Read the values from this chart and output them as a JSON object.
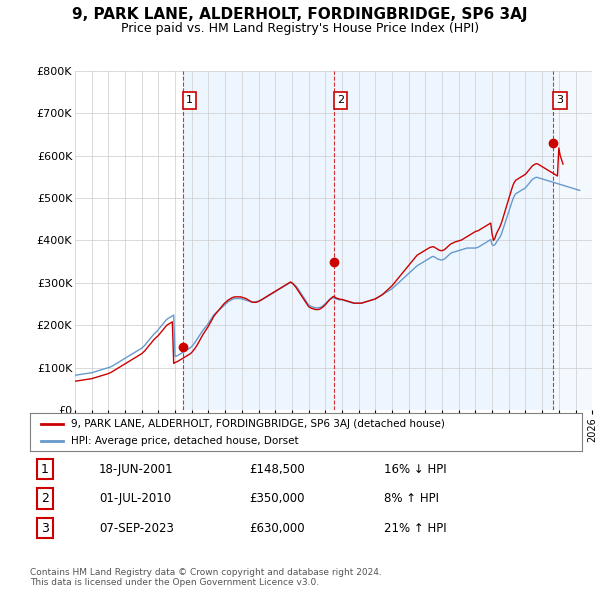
{
  "title": "9, PARK LANE, ALDERHOLT, FORDINGBRIDGE, SP6 3AJ",
  "subtitle": "Price paid vs. HM Land Registry's House Price Index (HPI)",
  "ylabel_ticks": [
    "£0",
    "£100K",
    "£200K",
    "£300K",
    "£400K",
    "£500K",
    "£600K",
    "£700K",
    "£800K"
  ],
  "ylim": [
    0,
    800000
  ],
  "xlim_start": 1995.0,
  "xlim_end": 2026.0,
  "red_line_color": "#cc0000",
  "blue_line_color": "#6699cc",
  "shade_color": "#ddeeff",
  "legend_label_red": "9, PARK LANE, ALDERHOLT, FORDINGBRIDGE, SP6 3AJ (detached house)",
  "legend_label_blue": "HPI: Average price, detached house, Dorset",
  "transactions": [
    {
      "num": 1,
      "date": "18-JUN-2001",
      "price": 148500,
      "change": "16% ↓ HPI",
      "year": 2001.46
    },
    {
      "num": 2,
      "date": "01-JUL-2010",
      "price": 350000,
      "change": "8% ↑ HPI",
      "year": 2010.5
    },
    {
      "num": 3,
      "date": "07-SEP-2023",
      "price": 630000,
      "change": "21% ↑ HPI",
      "year": 2023.67
    }
  ],
  "footer": "Contains HM Land Registry data © Crown copyright and database right 2024.\nThis data is licensed under the Open Government Licence v3.0.",
  "hpi_x": [
    1995.0,
    1995.083,
    1995.167,
    1995.25,
    1995.333,
    1995.417,
    1995.5,
    1995.583,
    1995.667,
    1995.75,
    1995.833,
    1995.917,
    1996.0,
    1996.083,
    1996.167,
    1996.25,
    1996.333,
    1996.417,
    1996.5,
    1996.583,
    1996.667,
    1996.75,
    1996.833,
    1996.917,
    1997.0,
    1997.083,
    1997.167,
    1997.25,
    1997.333,
    1997.417,
    1997.5,
    1997.583,
    1997.667,
    1997.75,
    1997.833,
    1997.917,
    1998.0,
    1998.083,
    1998.167,
    1998.25,
    1998.333,
    1998.417,
    1998.5,
    1998.583,
    1998.667,
    1998.75,
    1998.833,
    1998.917,
    1999.0,
    1999.083,
    1999.167,
    1999.25,
    1999.333,
    1999.417,
    1999.5,
    1999.583,
    1999.667,
    1999.75,
    1999.833,
    1999.917,
    2000.0,
    2000.083,
    2000.167,
    2000.25,
    2000.333,
    2000.417,
    2000.5,
    2000.583,
    2000.667,
    2000.75,
    2000.833,
    2000.917,
    2001.0,
    2001.083,
    2001.167,
    2001.25,
    2001.333,
    2001.417,
    2001.5,
    2001.583,
    2001.667,
    2001.75,
    2001.833,
    2001.917,
    2002.0,
    2002.083,
    2002.167,
    2002.25,
    2002.333,
    2002.417,
    2002.5,
    2002.583,
    2002.667,
    2002.75,
    2002.833,
    2002.917,
    2003.0,
    2003.083,
    2003.167,
    2003.25,
    2003.333,
    2003.417,
    2003.5,
    2003.583,
    2003.667,
    2003.75,
    2003.833,
    2003.917,
    2004.0,
    2004.083,
    2004.167,
    2004.25,
    2004.333,
    2004.417,
    2004.5,
    2004.583,
    2004.667,
    2004.75,
    2004.833,
    2004.917,
    2005.0,
    2005.083,
    2005.167,
    2005.25,
    2005.333,
    2005.417,
    2005.5,
    2005.583,
    2005.667,
    2005.75,
    2005.833,
    2005.917,
    2006.0,
    2006.083,
    2006.167,
    2006.25,
    2006.333,
    2006.417,
    2006.5,
    2006.583,
    2006.667,
    2006.75,
    2006.833,
    2006.917,
    2007.0,
    2007.083,
    2007.167,
    2007.25,
    2007.333,
    2007.417,
    2007.5,
    2007.583,
    2007.667,
    2007.75,
    2007.833,
    2007.917,
    2008.0,
    2008.083,
    2008.167,
    2008.25,
    2008.333,
    2008.417,
    2008.5,
    2008.583,
    2008.667,
    2008.75,
    2008.833,
    2008.917,
    2009.0,
    2009.083,
    2009.167,
    2009.25,
    2009.333,
    2009.417,
    2009.5,
    2009.583,
    2009.667,
    2009.75,
    2009.833,
    2009.917,
    2010.0,
    2010.083,
    2010.167,
    2010.25,
    2010.333,
    2010.417,
    2010.5,
    2010.583,
    2010.667,
    2010.75,
    2010.833,
    2010.917,
    2011.0,
    2011.083,
    2011.167,
    2011.25,
    2011.333,
    2011.417,
    2011.5,
    2011.583,
    2011.667,
    2011.75,
    2011.833,
    2011.917,
    2012.0,
    2012.083,
    2012.167,
    2012.25,
    2012.333,
    2012.417,
    2012.5,
    2012.583,
    2012.667,
    2012.75,
    2012.833,
    2012.917,
    2013.0,
    2013.083,
    2013.167,
    2013.25,
    2013.333,
    2013.417,
    2013.5,
    2013.583,
    2013.667,
    2013.75,
    2013.833,
    2013.917,
    2014.0,
    2014.083,
    2014.167,
    2014.25,
    2014.333,
    2014.417,
    2014.5,
    2014.583,
    2014.667,
    2014.75,
    2014.833,
    2014.917,
    2015.0,
    2015.083,
    2015.167,
    2015.25,
    2015.333,
    2015.417,
    2015.5,
    2015.583,
    2015.667,
    2015.75,
    2015.833,
    2015.917,
    2016.0,
    2016.083,
    2016.167,
    2016.25,
    2016.333,
    2016.417,
    2016.5,
    2016.583,
    2016.667,
    2016.75,
    2016.833,
    2016.917,
    2017.0,
    2017.083,
    2017.167,
    2017.25,
    2017.333,
    2017.417,
    2017.5,
    2017.583,
    2017.667,
    2017.75,
    2017.833,
    2017.917,
    2018.0,
    2018.083,
    2018.167,
    2018.25,
    2018.333,
    2018.417,
    2018.5,
    2018.583,
    2018.667,
    2018.75,
    2018.833,
    2018.917,
    2019.0,
    2019.083,
    2019.167,
    2019.25,
    2019.333,
    2019.417,
    2019.5,
    2019.583,
    2019.667,
    2019.75,
    2019.833,
    2019.917,
    2020.0,
    2020.083,
    2020.167,
    2020.25,
    2020.333,
    2020.417,
    2020.5,
    2020.583,
    2020.667,
    2020.75,
    2020.833,
    2020.917,
    2021.0,
    2021.083,
    2021.167,
    2021.25,
    2021.333,
    2021.417,
    2021.5,
    2021.583,
    2021.667,
    2021.75,
    2021.833,
    2021.917,
    2022.0,
    2022.083,
    2022.167,
    2022.25,
    2022.333,
    2022.417,
    2022.5,
    2022.583,
    2022.667,
    2022.75,
    2022.833,
    2022.917,
    2023.0,
    2023.083,
    2023.167,
    2023.25,
    2023.333,
    2023.417,
    2023.5,
    2023.583,
    2023.667,
    2023.75,
    2023.833,
    2023.917,
    2024.0,
    2024.083,
    2024.167,
    2024.25,
    2024.333,
    2024.417,
    2024.5,
    2024.583,
    2024.667,
    2024.75,
    2024.833,
    2024.917,
    2025.0,
    2025.083,
    2025.167,
    2025.25
  ],
  "hpi_y": [
    82000,
    82500,
    83000,
    83500,
    84000,
    84500,
    85000,
    85500,
    86000,
    86500,
    87000,
    87500,
    88000,
    89000,
    90000,
    91000,
    92000,
    93000,
    94000,
    95000,
    96000,
    97000,
    98000,
    99000,
    100000,
    101000,
    102500,
    104000,
    106000,
    108000,
    110000,
    112000,
    114000,
    116000,
    118000,
    120000,
    122000,
    124000,
    126000,
    128000,
    130000,
    132000,
    134000,
    136000,
    138000,
    140000,
    142000,
    144000,
    146000,
    149000,
    152000,
    156000,
    160000,
    164000,
    168000,
    172000,
    176000,
    180000,
    183000,
    186000,
    190000,
    194000,
    198000,
    202000,
    206000,
    210000,
    214000,
    216000,
    218000,
    220000,
    222000,
    224000,
    126000,
    127500,
    129000,
    131000,
    133000,
    135000,
    137000,
    139000,
    141000,
    143000,
    145000,
    147000,
    150000,
    154000,
    158000,
    163000,
    168000,
    173000,
    178000,
    183000,
    188000,
    192000,
    196000,
    200000,
    205000,
    210000,
    215000,
    220000,
    225000,
    228000,
    231000,
    234000,
    237000,
    240000,
    243000,
    246000,
    249000,
    252000,
    255000,
    257000,
    259000,
    261000,
    262000,
    263000,
    263000,
    263000,
    263000,
    263000,
    262000,
    261000,
    260000,
    259000,
    258000,
    257000,
    256000,
    255000,
    255000,
    255000,
    255000,
    256000,
    257000,
    258000,
    259000,
    261000,
    263000,
    265000,
    267000,
    269000,
    271000,
    273000,
    275000,
    277000,
    279000,
    281000,
    283000,
    285000,
    287000,
    289000,
    291000,
    293000,
    295000,
    297000,
    299000,
    301000,
    300000,
    298000,
    295000,
    292000,
    288000,
    283000,
    278000,
    273000,
    268000,
    263000,
    258000,
    253000,
    248000,
    246000,
    244000,
    243000,
    242000,
    241000,
    241000,
    241000,
    242000,
    243000,
    245000,
    248000,
    251000,
    254000,
    257000,
    260000,
    262000,
    264000,
    265000,
    263000,
    262000,
    261000,
    260000,
    260000,
    260000,
    259000,
    258000,
    257000,
    256000,
    255000,
    254000,
    253000,
    252000,
    252000,
    252000,
    252000,
    252000,
    252000,
    252000,
    253000,
    254000,
    255000,
    256000,
    257000,
    258000,
    259000,
    260000,
    261000,
    262000,
    264000,
    266000,
    268000,
    270000,
    272000,
    274000,
    276000,
    278000,
    280000,
    282000,
    284000,
    286000,
    289000,
    292000,
    295000,
    298000,
    301000,
    304000,
    307000,
    310000,
    313000,
    316000,
    319000,
    322000,
    325000,
    328000,
    331000,
    334000,
    337000,
    340000,
    342000,
    344000,
    346000,
    348000,
    350000,
    352000,
    354000,
    356000,
    358000,
    360000,
    362000,
    362000,
    360000,
    358000,
    356000,
    355000,
    354000,
    354000,
    355000,
    357000,
    360000,
    363000,
    366000,
    369000,
    371000,
    372000,
    373000,
    374000,
    375000,
    376000,
    377000,
    378000,
    379000,
    380000,
    381000,
    382000,
    382000,
    382000,
    382000,
    382000,
    382000,
    382000,
    383000,
    384000,
    386000,
    388000,
    390000,
    392000,
    394000,
    396000,
    398000,
    400000,
    402000,
    390000,
    388000,
    390000,
    395000,
    400000,
    405000,
    410000,
    418000,
    428000,
    438000,
    448000,
    458000,
    468000,
    478000,
    488000,
    498000,
    505000,
    510000,
    512000,
    514000,
    516000,
    518000,
    520000,
    522000,
    524000,
    528000,
    532000,
    536000,
    540000,
    544000,
    546000,
    548000,
    549000,
    548000,
    547000,
    546000,
    545000,
    544000,
    543000,
    542000,
    541000,
    540000,
    539000,
    538000,
    537000,
    536000,
    535000,
    534000,
    533000,
    532000,
    531000,
    530000,
    529000,
    528000,
    527000,
    526000,
    525000,
    524000,
    523000,
    522000,
    521000,
    520000,
    519000,
    518000
  ],
  "red_x": [
    1995.0,
    1995.083,
    1995.167,
    1995.25,
    1995.333,
    1995.417,
    1995.5,
    1995.583,
    1995.667,
    1995.75,
    1995.833,
    1995.917,
    1996.0,
    1996.083,
    1996.167,
    1996.25,
    1996.333,
    1996.417,
    1996.5,
    1996.583,
    1996.667,
    1996.75,
    1996.833,
    1996.917,
    1997.0,
    1997.083,
    1997.167,
    1997.25,
    1997.333,
    1997.417,
    1997.5,
    1997.583,
    1997.667,
    1997.75,
    1997.833,
    1997.917,
    1998.0,
    1998.083,
    1998.167,
    1998.25,
    1998.333,
    1998.417,
    1998.5,
    1998.583,
    1998.667,
    1998.75,
    1998.833,
    1998.917,
    1999.0,
    1999.083,
    1999.167,
    1999.25,
    1999.333,
    1999.417,
    1999.5,
    1999.583,
    1999.667,
    1999.75,
    1999.833,
    1999.917,
    2000.0,
    2000.083,
    2000.167,
    2000.25,
    2000.333,
    2000.417,
    2000.5,
    2000.583,
    2000.667,
    2000.75,
    2000.833,
    2000.917,
    2001.0,
    2001.083,
    2001.167,
    2001.25,
    2001.333,
    2001.417,
    2001.5,
    2001.583,
    2001.667,
    2001.75,
    2001.833,
    2001.917,
    2002.0,
    2002.083,
    2002.167,
    2002.25,
    2002.333,
    2002.417,
    2002.5,
    2002.583,
    2002.667,
    2002.75,
    2002.833,
    2002.917,
    2003.0,
    2003.083,
    2003.167,
    2003.25,
    2003.333,
    2003.417,
    2003.5,
    2003.583,
    2003.667,
    2003.75,
    2003.833,
    2003.917,
    2004.0,
    2004.083,
    2004.167,
    2004.25,
    2004.333,
    2004.417,
    2004.5,
    2004.583,
    2004.667,
    2004.75,
    2004.833,
    2004.917,
    2005.0,
    2005.083,
    2005.167,
    2005.25,
    2005.333,
    2005.417,
    2005.5,
    2005.583,
    2005.667,
    2005.75,
    2005.833,
    2005.917,
    2006.0,
    2006.083,
    2006.167,
    2006.25,
    2006.333,
    2006.417,
    2006.5,
    2006.583,
    2006.667,
    2006.75,
    2006.833,
    2006.917,
    2007.0,
    2007.083,
    2007.167,
    2007.25,
    2007.333,
    2007.417,
    2007.5,
    2007.583,
    2007.667,
    2007.75,
    2007.833,
    2007.917,
    2008.0,
    2008.083,
    2008.167,
    2008.25,
    2008.333,
    2008.417,
    2008.5,
    2008.583,
    2008.667,
    2008.75,
    2008.833,
    2008.917,
    2009.0,
    2009.083,
    2009.167,
    2009.25,
    2009.333,
    2009.417,
    2009.5,
    2009.583,
    2009.667,
    2009.75,
    2009.833,
    2009.917,
    2010.0,
    2010.083,
    2010.167,
    2010.25,
    2010.333,
    2010.417,
    2010.5,
    2010.583,
    2010.667,
    2010.75,
    2010.833,
    2010.917,
    2011.0,
    2011.083,
    2011.167,
    2011.25,
    2011.333,
    2011.417,
    2011.5,
    2011.583,
    2011.667,
    2011.75,
    2011.833,
    2011.917,
    2012.0,
    2012.083,
    2012.167,
    2012.25,
    2012.333,
    2012.417,
    2012.5,
    2012.583,
    2012.667,
    2012.75,
    2012.833,
    2012.917,
    2013.0,
    2013.083,
    2013.167,
    2013.25,
    2013.333,
    2013.417,
    2013.5,
    2013.583,
    2013.667,
    2013.75,
    2013.833,
    2013.917,
    2014.0,
    2014.083,
    2014.167,
    2014.25,
    2014.333,
    2014.417,
    2014.5,
    2014.583,
    2014.667,
    2014.75,
    2014.833,
    2014.917,
    2015.0,
    2015.083,
    2015.167,
    2015.25,
    2015.333,
    2015.417,
    2015.5,
    2015.583,
    2015.667,
    2015.75,
    2015.833,
    2015.917,
    2016.0,
    2016.083,
    2016.167,
    2016.25,
    2016.333,
    2016.417,
    2016.5,
    2016.583,
    2016.667,
    2016.75,
    2016.833,
    2016.917,
    2017.0,
    2017.083,
    2017.167,
    2017.25,
    2017.333,
    2017.417,
    2017.5,
    2017.583,
    2017.667,
    2017.75,
    2017.833,
    2017.917,
    2018.0,
    2018.083,
    2018.167,
    2018.25,
    2018.333,
    2018.417,
    2018.5,
    2018.583,
    2018.667,
    2018.75,
    2018.833,
    2018.917,
    2019.0,
    2019.083,
    2019.167,
    2019.25,
    2019.333,
    2019.417,
    2019.5,
    2019.583,
    2019.667,
    2019.75,
    2019.833,
    2019.917,
    2020.0,
    2020.083,
    2020.167,
    2020.25,
    2020.333,
    2020.417,
    2020.5,
    2020.583,
    2020.667,
    2020.75,
    2020.833,
    2020.917,
    2021.0,
    2021.083,
    2021.167,
    2021.25,
    2021.333,
    2021.417,
    2021.5,
    2021.583,
    2021.667,
    2021.75,
    2021.833,
    2021.917,
    2022.0,
    2022.083,
    2022.167,
    2022.25,
    2022.333,
    2022.417,
    2022.5,
    2022.583,
    2022.667,
    2022.75,
    2022.833,
    2022.917,
    2023.0,
    2023.083,
    2023.167,
    2023.25,
    2023.333,
    2023.417,
    2023.5,
    2023.583,
    2023.667,
    2023.75,
    2023.833,
    2023.917,
    2024.0,
    2024.083,
    2024.167,
    2024.25
  ],
  "red_y": [
    68000,
    68500,
    69000,
    69500,
    70000,
    70500,
    71000,
    71500,
    72000,
    72500,
    73000,
    73500,
    74000,
    75000,
    76000,
    77000,
    78000,
    79000,
    80000,
    81000,
    82000,
    83000,
    84000,
    85000,
    86000,
    87500,
    89000,
    91000,
    93000,
    95000,
    97000,
    99000,
    101000,
    103000,
    105000,
    107000,
    109000,
    111000,
    113000,
    115000,
    117000,
    119000,
    121000,
    123000,
    125000,
    127000,
    129000,
    131000,
    133000,
    136000,
    139000,
    143000,
    147000,
    151000,
    155000,
    159000,
    163000,
    167000,
    170000,
    173000,
    176000,
    180000,
    184000,
    188000,
    192000,
    196000,
    200000,
    202000,
    204000,
    206000,
    208000,
    110000,
    112000,
    113500,
    115000,
    117000,
    119000,
    121000,
    123000,
    125000,
    127000,
    129000,
    131000,
    133000,
    136000,
    140000,
    144000,
    149000,
    154000,
    160000,
    166000,
    172000,
    178000,
    183000,
    188000,
    193000,
    198000,
    204000,
    210000,
    216000,
    222000,
    226000,
    230000,
    234000,
    238000,
    242000,
    246000,
    250000,
    253000,
    256000,
    259000,
    261000,
    263000,
    265000,
    266000,
    267000,
    267000,
    267000,
    267000,
    267000,
    266000,
    265000,
    264000,
    263000,
    261000,
    259000,
    257000,
    255000,
    254000,
    254000,
    254000,
    255000,
    256000,
    258000,
    260000,
    262000,
    264000,
    266000,
    268000,
    270000,
    272000,
    274000,
    276000,
    278000,
    280000,
    282000,
    284000,
    286000,
    288000,
    290000,
    292000,
    294000,
    296000,
    298000,
    300000,
    302000,
    300000,
    297000,
    293000,
    289000,
    284000,
    279000,
    274000,
    269000,
    264000,
    259000,
    254000,
    249000,
    244000,
    242000,
    240000,
    239000,
    238000,
    237000,
    237000,
    237000,
    238000,
    240000,
    242000,
    245000,
    248000,
    252000,
    256000,
    260000,
    263000,
    266000,
    268000,
    266000,
    264000,
    263000,
    262000,
    261000,
    261000,
    260000,
    259000,
    258000,
    257000,
    256000,
    255000,
    254000,
    253000,
    252000,
    252000,
    252000,
    252000,
    252000,
    252000,
    253000,
    254000,
    255000,
    256000,
    257000,
    258000,
    259000,
    260000,
    261000,
    262000,
    264000,
    266000,
    268000,
    270000,
    272000,
    275000,
    278000,
    281000,
    284000,
    287000,
    290000,
    293000,
    297000,
    301000,
    305000,
    309000,
    313000,
    317000,
    321000,
    325000,
    329000,
    333000,
    337000,
    341000,
    345000,
    349000,
    353000,
    357000,
    361000,
    365000,
    367000,
    369000,
    371000,
    373000,
    375000,
    377000,
    379000,
    381000,
    383000,
    384000,
    385000,
    385000,
    383000,
    381000,
    379000,
    377000,
    376000,
    376000,
    377000,
    379000,
    382000,
    385000,
    388000,
    391000,
    393000,
    394000,
    396000,
    397000,
    398000,
    399000,
    400000,
    401000,
    403000,
    405000,
    407000,
    409000,
    411000,
    413000,
    415000,
    417000,
    419000,
    421000,
    422000,
    423000,
    425000,
    427000,
    429000,
    431000,
    433000,
    435000,
    437000,
    439000,
    441000,
    415000,
    400000,
    405000,
    415000,
    422000,
    428000,
    435000,
    444000,
    455000,
    466000,
    477000,
    488000,
    499000,
    510000,
    520000,
    530000,
    537000,
    542000,
    544000,
    546000,
    548000,
    550000,
    552000,
    554000,
    556000,
    560000,
    564000,
    568000,
    572000,
    576000,
    578000,
    580000,
    581000,
    580000,
    578000,
    576000,
    574000,
    572000,
    570000,
    568000,
    566000,
    564000,
    562000,
    560000,
    558000,
    556000,
    554000,
    552000,
    618000,
    600000,
    590000,
    580000
  ]
}
